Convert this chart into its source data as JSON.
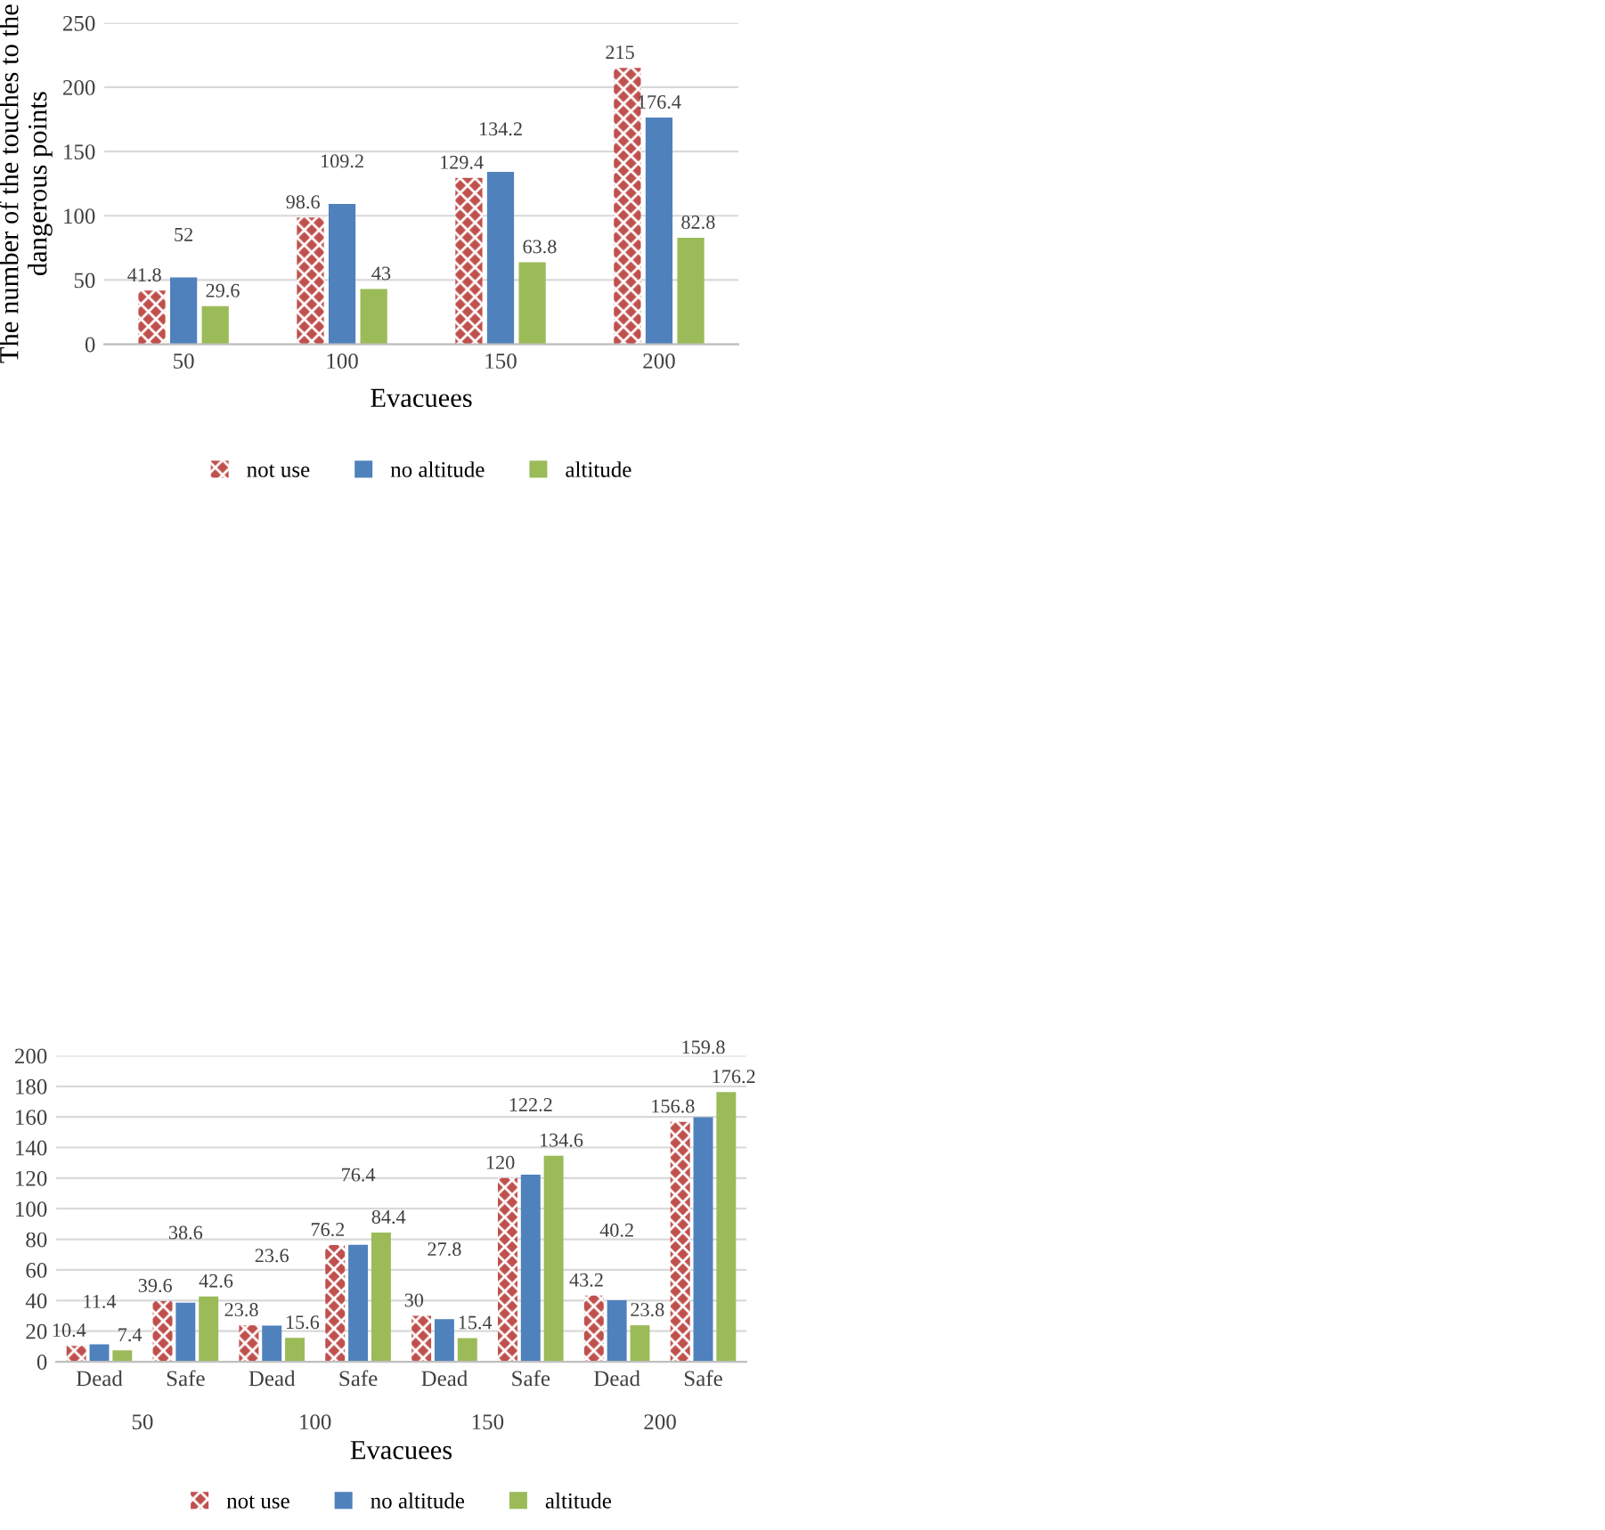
{
  "chart_data": [
    {
      "type": "bar",
      "xlabel": "Evacuees",
      "ylabel": "The number of the touches to the dangerous points",
      "categories": [
        "50",
        "100",
        "150",
        "200"
      ],
      "series": [
        {
          "name": "not use",
          "color": "#c0504d",
          "values": [
            41.8,
            98.6,
            129.4,
            215
          ]
        },
        {
          "name": "no altitude",
          "color": "#4f81bd",
          "values": [
            52,
            109.2,
            134.2,
            176.4
          ]
        },
        {
          "name": "altitude",
          "color": "#9bbb59",
          "values": [
            29.6,
            43,
            63.8,
            82.8
          ]
        }
      ],
      "ylim": [
        0,
        250
      ],
      "yticks": [
        0,
        50,
        100,
        150,
        200,
        250
      ],
      "grid": "y",
      "legend": "bottom",
      "data_labels": true
    },
    {
      "type": "bar",
      "xlabel": "Evacuees",
      "categories": [
        "Dead",
        "Safe",
        "Dead",
        "Safe",
        "Dead",
        "Safe",
        "Dead",
        "Safe"
      ],
      "annotations": [
        "50",
        "100",
        "150",
        "200"
      ],
      "series": [
        {
          "name": "not use",
          "color": "#c0504d",
          "values": [
            10.4,
            39.6,
            23.8,
            76.2,
            30,
            120,
            43.2,
            156.8
          ]
        },
        {
          "name": "no altitude",
          "color": "#4f81bd",
          "values": [
            11.4,
            38.6,
            23.6,
            76.4,
            27.8,
            122.2,
            40.2,
            159.8
          ]
        },
        {
          "name": "altitude",
          "color": "#9bbb59",
          "values": [
            7.4,
            42.6,
            15.6,
            84.4,
            15.4,
            134.6,
            23.8,
            176.2
          ]
        }
      ],
      "ylim": [
        0,
        200
      ],
      "yticks": [
        0,
        20,
        40,
        60,
        80,
        100,
        120,
        140,
        160,
        180,
        200
      ],
      "grid": "y",
      "legend": "bottom",
      "data_labels": true
    }
  ]
}
